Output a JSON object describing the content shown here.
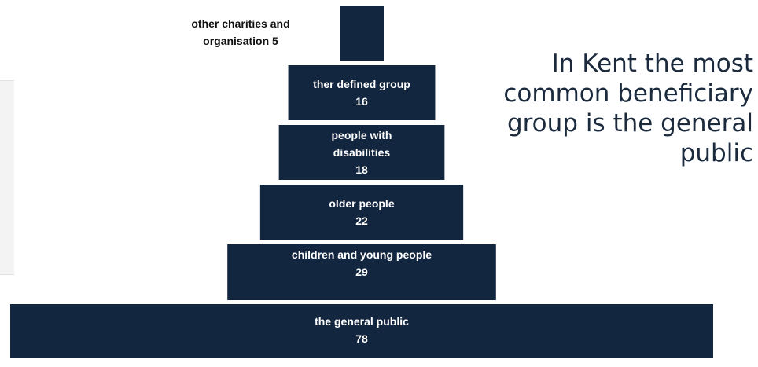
{
  "callout": {
    "text": "In Kent the most common beneficiary group is the general public"
  },
  "colors": {
    "bar": "#13263f",
    "label": "#ffffff",
    "callout_text": "#1b2a3d"
  },
  "chart_data": {
    "type": "bar",
    "orientation": "horizontal",
    "style": "pyramid",
    "title": "",
    "xlabel": "",
    "ylabel": "",
    "categories": [
      "other charities and organisation",
      "ther defined group",
      "people with disabilities",
      "older people",
      "children and young people",
      "the general public"
    ],
    "values": [
      5,
      16,
      18,
      22,
      29,
      78
    ],
    "labels": [
      {
        "name": "other charities and organisation",
        "value": "5"
      },
      {
        "name": "ther defined group",
        "value": "16"
      },
      {
        "name": "people with disabilities",
        "value": "18"
      },
      {
        "name": "older people",
        "value": "22"
      },
      {
        "name": "children and young people",
        "value": "29"
      },
      {
        "name": "the general public",
        "value": "78"
      }
    ],
    "grid": false,
    "legend": "none"
  }
}
